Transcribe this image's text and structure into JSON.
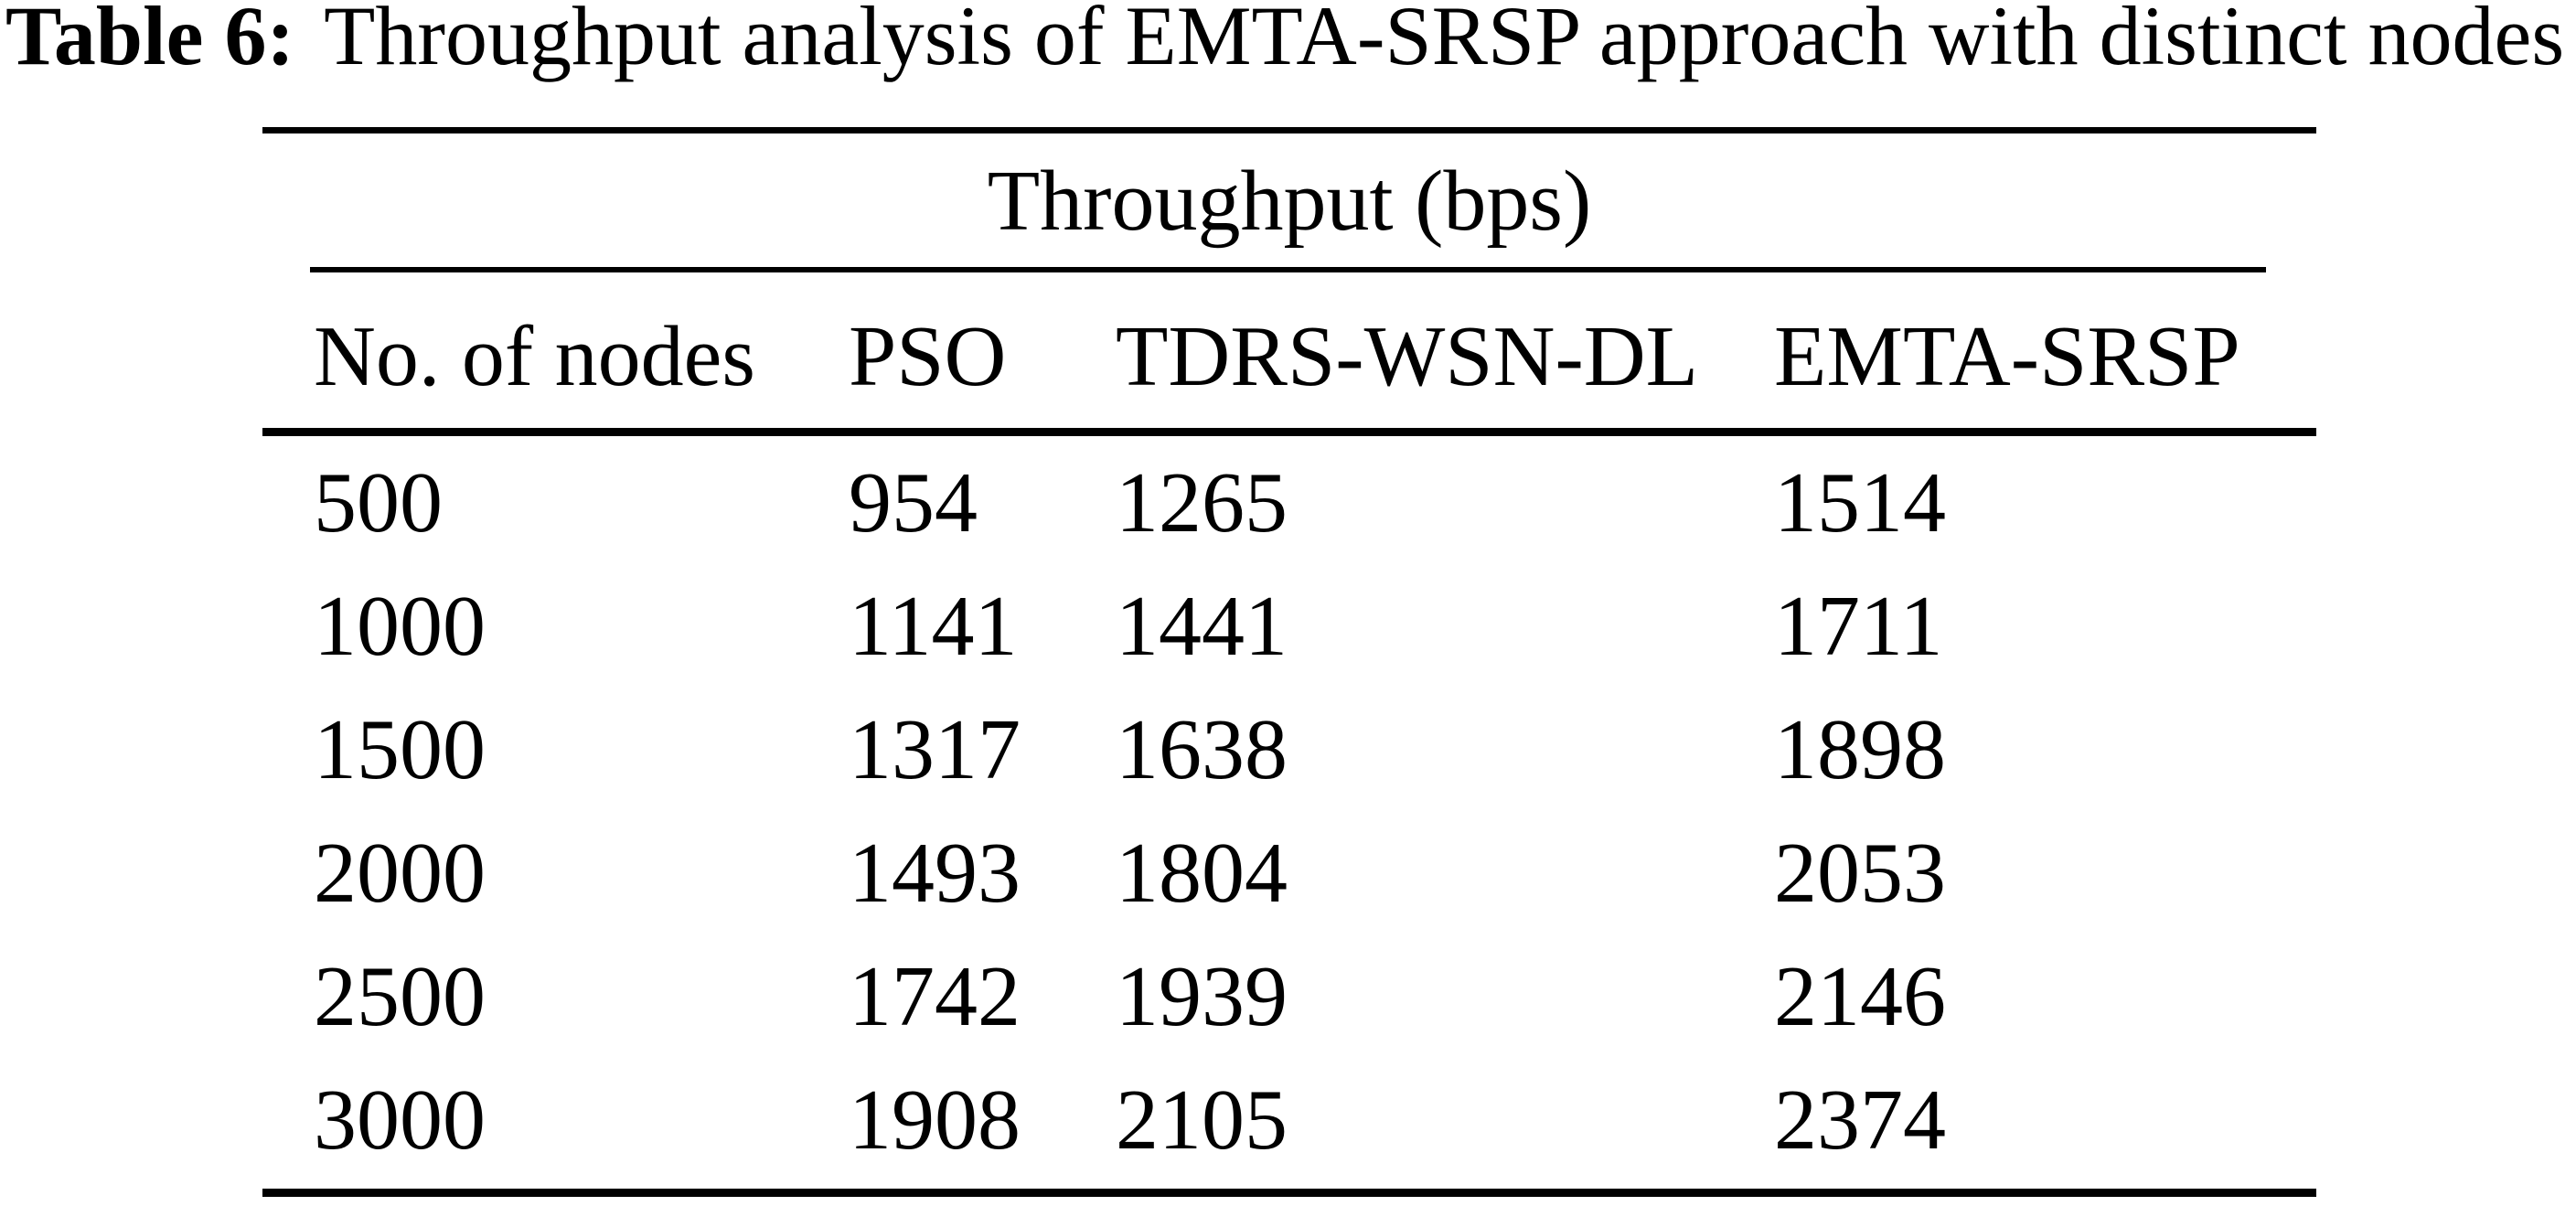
{
  "title": {
    "label": "Table 6:",
    "text": "Throughput analysis of EMTA-SRSP approach with distinct nodes"
  },
  "table": {
    "spanner": "Throughput (bps)",
    "columns": [
      "No. of nodes",
      "PSO",
      "TDRS-WSN-DL",
      "EMTA-SRSP"
    ],
    "rows": [
      [
        "500",
        "954",
        "1265",
        "1514"
      ],
      [
        "1000",
        "1141",
        "1441",
        "1711"
      ],
      [
        "1500",
        "1317",
        "1638",
        "1898"
      ],
      [
        "2000",
        "1493",
        "1804",
        "2053"
      ],
      [
        "2500",
        "1742",
        "1939",
        "2146"
      ],
      [
        "3000",
        "1908",
        "2105",
        "2374"
      ]
    ]
  },
  "colors": {
    "text": "#000000",
    "background": "#ffffff"
  },
  "chart_data": {
    "type": "table",
    "title": "Table 6: Throughput analysis of EMTA-SRSP approach with distinct nodes",
    "group_header": "Throughput (bps)",
    "categories": [
      500,
      1000,
      1500,
      2000,
      2500,
      3000
    ],
    "xlabel": "No. of nodes",
    "ylabel": "Throughput (bps)",
    "series": [
      {
        "name": "PSO",
        "values": [
          954,
          1141,
          1317,
          1493,
          1742,
          1908
        ]
      },
      {
        "name": "TDRS-WSN-DL",
        "values": [
          1265,
          1441,
          1638,
          1804,
          1939,
          2105
        ]
      },
      {
        "name": "EMTA-SRSP",
        "values": [
          1514,
          1711,
          1898,
          2053,
          2146,
          2374
        ]
      }
    ]
  }
}
